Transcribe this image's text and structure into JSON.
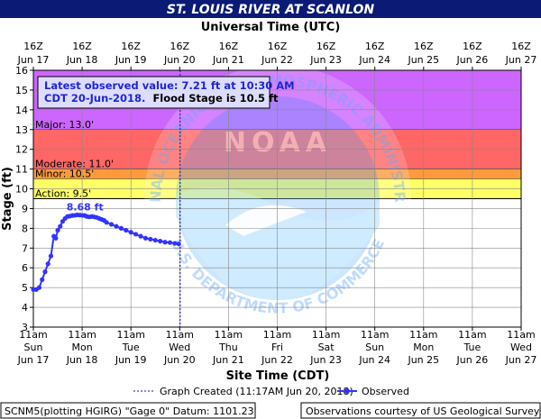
{
  "chart_data": {
    "type": "line",
    "title": "ST. LOUIS RIVER AT SCANLON",
    "top_axis_label": "Universal Time (UTC)",
    "xlabel": "Site Time (CDT)",
    "ylabel": "Stage (ft)",
    "ylim": [
      3,
      16
    ],
    "y_ticks": [
      "3",
      "4",
      "5",
      "6",
      "7",
      "8",
      "9",
      "10",
      "11",
      "12",
      "13",
      "14",
      "15",
      "16"
    ],
    "top_ticks": [
      {
        "l1": "16Z",
        "l2": "Jun 17"
      },
      {
        "l1": "16Z",
        "l2": "Jun 18"
      },
      {
        "l1": "16Z",
        "l2": "Jun 19"
      },
      {
        "l1": "16Z",
        "l2": "Jun 20"
      },
      {
        "l1": "16Z",
        "l2": "Jun 21"
      },
      {
        "l1": "16Z",
        "l2": "Jun 22"
      },
      {
        "l1": "16Z",
        "l2": "Jun 23"
      },
      {
        "l1": "16Z",
        "l2": "Jun 24"
      },
      {
        "l1": "16Z",
        "l2": "Jun 25"
      },
      {
        "l1": "16Z",
        "l2": "Jun 26"
      },
      {
        "l1": "16Z",
        "l2": "Jun 27"
      }
    ],
    "bottom_ticks": [
      {
        "l1": "11am",
        "l2": "Sun",
        "l3": "Jun 17"
      },
      {
        "l1": "11am",
        "l2": "Mon",
        "l3": "Jun 18"
      },
      {
        "l1": "11am",
        "l2": "Tue",
        "l3": "Jun 19"
      },
      {
        "l1": "11am",
        "l2": "Wed",
        "l3": "Jun 20"
      },
      {
        "l1": "11am",
        "l2": "Thu",
        "l3": "Jun 21"
      },
      {
        "l1": "11am",
        "l2": "Fri",
        "l3": "Jun 22"
      },
      {
        "l1": "11am",
        "l2": "Sat",
        "l3": "Jun 23"
      },
      {
        "l1": "11am",
        "l2": "Sun",
        "l3": "Jun 24"
      },
      {
        "l1": "11am",
        "l2": "Mon",
        "l3": "Jun 25"
      },
      {
        "l1": "11am",
        "l2": "Tue",
        "l3": "Jun 26"
      },
      {
        "l1": "11am",
        "l2": "Wed",
        "l3": "Jun 27"
      }
    ],
    "flood_zones": [
      {
        "label": "",
        "from": 13.0,
        "to": 16.0,
        "color": "#cc66ff"
      },
      {
        "label": "Major: 13.0'",
        "from": 13.0,
        "to": 16.0,
        "color": "#cc66ff"
      },
      {
        "label": "Moderate: 11.0'",
        "from": 11.0,
        "to": 13.0,
        "color": "#ff6666"
      },
      {
        "label": "Minor: 10.5'",
        "from": 10.5,
        "to": 11.0,
        "color": "#ff9a3c"
      },
      {
        "label": "Action: 9.5'",
        "from": 9.5,
        "to": 10.5,
        "color": "#ffff66"
      }
    ],
    "info_box": {
      "line1": "Latest observed value: 7.21 ft at 10:30 AM",
      "line2_blue": "CDT 20-Jun-2018.",
      "line2_black": "Flood Stage is 10.5 ft"
    },
    "peak_label": "8.68 ft",
    "graph_created_day": 3.01,
    "series": [
      {
        "name": "Observed",
        "color": "#3333ff",
        "x": [
          0.0,
          0.06,
          0.12,
          0.18,
          0.24,
          0.3,
          0.36,
          0.42,
          0.46,
          0.5,
          0.55,
          0.6,
          0.65,
          0.7,
          0.75,
          0.8,
          0.85,
          0.9,
          0.95,
          1.0,
          1.05,
          1.1,
          1.15,
          1.2,
          1.25,
          1.3,
          1.35,
          1.4,
          1.45,
          1.5,
          1.6,
          1.7,
          1.8,
          1.9,
          2.0,
          2.1,
          2.2,
          2.3,
          2.4,
          2.5,
          2.6,
          2.7,
          2.8,
          2.9,
          2.98
        ],
        "y": [
          4.9,
          4.9,
          5.0,
          5.4,
          5.8,
          6.2,
          6.6,
          7.6,
          7.5,
          7.9,
          8.1,
          8.35,
          8.5,
          8.6,
          8.62,
          8.65,
          8.66,
          8.68,
          8.67,
          8.66,
          8.65,
          8.6,
          8.58,
          8.6,
          8.58,
          8.55,
          8.5,
          8.45,
          8.4,
          8.3,
          8.2,
          8.1,
          8.0,
          7.9,
          7.8,
          7.7,
          7.6,
          7.5,
          7.45,
          7.4,
          7.35,
          7.3,
          7.28,
          7.24,
          7.21
        ]
      }
    ]
  },
  "legend": {
    "graph_created": "Graph Created (11:17AM Jun 20, 2018)",
    "observed": "Observed"
  },
  "footer": {
    "left": "SCNM5(plotting HGIRG) \"Gage 0\" Datum: 1101.23'",
    "right": "Observations courtesy of US Geological Survey"
  },
  "watermark": {
    "top_text": "NATIONAL OCEANIC AND ATMOSPHERIC ADMINISTRATION",
    "bottom_text": "U.S. DEPARTMENT OF COMMERCE",
    "center_text": "NOAA"
  },
  "colors": {
    "title_bg": "#0a1a75",
    "title_fg": "#ffffff",
    "series": "#3333ff"
  }
}
